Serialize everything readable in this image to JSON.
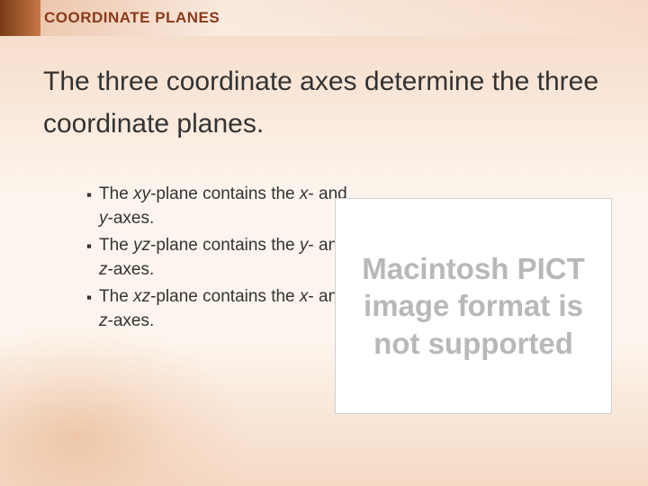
{
  "header": {
    "title": "COORDINATE PLANES"
  },
  "main": {
    "heading": "The three coordinate axes determine the three coordinate planes."
  },
  "bullets": [
    {
      "prefix": "The ",
      "italic": "xy",
      "suffix1": "-plane contains the ",
      "italic2": "x",
      "suffix2": "- and ",
      "italic3": "y",
      "suffix3": "-axes."
    },
    {
      "prefix": "The ",
      "italic": "yz",
      "suffix1": "-plane contains the ",
      "italic2": "y",
      "suffix2": "- and ",
      "italic3": "z",
      "suffix3": "-axes."
    },
    {
      "prefix": "The ",
      "italic": "xz",
      "suffix1": "-plane contains the ",
      "italic2": "x",
      "suffix2": "- and ",
      "italic3": "z",
      "suffix3": "-axes."
    }
  ],
  "placeholder": {
    "text": "Macintosh PICT image format is not supported"
  },
  "colors": {
    "header_text": "#8a3a1a",
    "body_text": "#333333",
    "placeholder_text": "#b8b8b8",
    "placeholder_bg": "#ffffff",
    "background_light": "#fdf5ed",
    "background_peach": "#f5d9c5",
    "header_dark": "#7a3a15"
  }
}
